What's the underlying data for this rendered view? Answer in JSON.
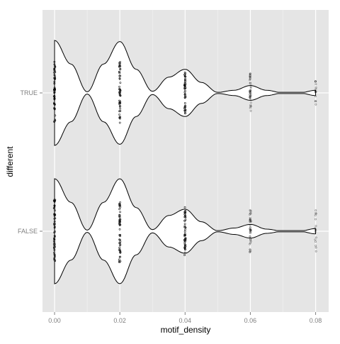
{
  "chart_data": {
    "type": "violin",
    "orientation": "horizontal",
    "xlabel": "motif_density",
    "ylabel": "different",
    "categories": [
      "TRUE",
      "FALSE"
    ],
    "x_ticks": [
      0.0,
      0.02,
      0.04,
      0.06,
      0.08
    ],
    "x_tick_labels": [
      "0.00",
      "0.02",
      "0.04",
      "0.06",
      "0.08"
    ],
    "xlim": [
      -0.0037,
      0.084
    ],
    "grid": true,
    "legend": "none",
    "colors": {
      "panel_background": "#e5e5e5",
      "grid_major": "#ffffff",
      "grid_minor": "#f2f2f2",
      "violin_fill": "#ffffff",
      "violin_stroke": "#000000",
      "points": "#000000",
      "axis_text": "#7f7f7f",
      "axis_title": "#000000"
    },
    "series": [
      {
        "name": "TRUE",
        "density_x": [
          0.0,
          0.005,
          0.01,
          0.015,
          0.02,
          0.025,
          0.03,
          0.035,
          0.04,
          0.045,
          0.05,
          0.055,
          0.06,
          0.065,
          0.07,
          0.075,
          0.08
        ],
        "density_halfwidth": [
          1.0,
          0.55,
          0.02,
          0.55,
          0.98,
          0.45,
          0.03,
          0.3,
          0.45,
          0.2,
          0.01,
          0.05,
          0.14,
          0.05,
          0.0,
          0.0,
          0.05
        ],
        "point_values": [
          0.0,
          0.02,
          0.04,
          0.06,
          0.08
        ],
        "point_counts": [
          50,
          50,
          46,
          40,
          14
        ],
        "point_spread": [
          0.6,
          0.6,
          0.42,
          0.37,
          0.28
        ]
      },
      {
        "name": "FALSE",
        "density_x": [
          0.0,
          0.005,
          0.01,
          0.015,
          0.02,
          0.025,
          0.03,
          0.035,
          0.04,
          0.045,
          0.05,
          0.055,
          0.06,
          0.065,
          0.07,
          0.075,
          0.08
        ],
        "density_halfwidth": [
          1.0,
          0.55,
          0.02,
          0.55,
          1.0,
          0.45,
          0.03,
          0.3,
          0.42,
          0.18,
          0.01,
          0.06,
          0.13,
          0.04,
          0.0,
          0.0,
          0.05
        ],
        "point_values": [
          0.0,
          0.02,
          0.04,
          0.06,
          0.08
        ],
        "point_counts": [
          50,
          50,
          48,
          40,
          16
        ],
        "point_spread": [
          0.6,
          0.6,
          0.48,
          0.42,
          0.42
        ]
      }
    ]
  }
}
